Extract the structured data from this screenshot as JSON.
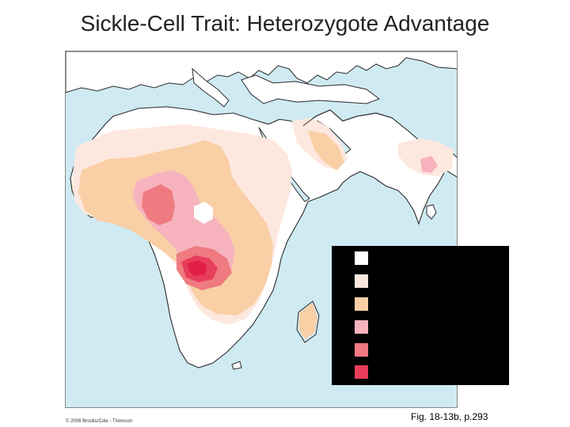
{
  "title": "Sickle-Cell Trait: Heterozygote Advantage",
  "figure_caption": "Fig. 18-13b, p.293",
  "copyright": "© 2006 Brooks/Cole - Thomson",
  "legend": {
    "swatches": [
      {
        "color": "#ffffff"
      },
      {
        "color": "#fde8df"
      },
      {
        "color": "#f9cfa6"
      },
      {
        "color": "#f6b3be"
      },
      {
        "color": "#ef7a80"
      },
      {
        "color": "#e83d5b"
      }
    ]
  },
  "colors": {
    "ocean": "#cfeaf2",
    "land": "#ffffff",
    "coast": "#2a2a2a",
    "level_1": "#fde8df",
    "level_2": "#f9cfa6",
    "level_3": "#f6b3be",
    "level_4": "#ef7a80",
    "level_5": "#e83d5b",
    "level_6": "#e21f45"
  }
}
